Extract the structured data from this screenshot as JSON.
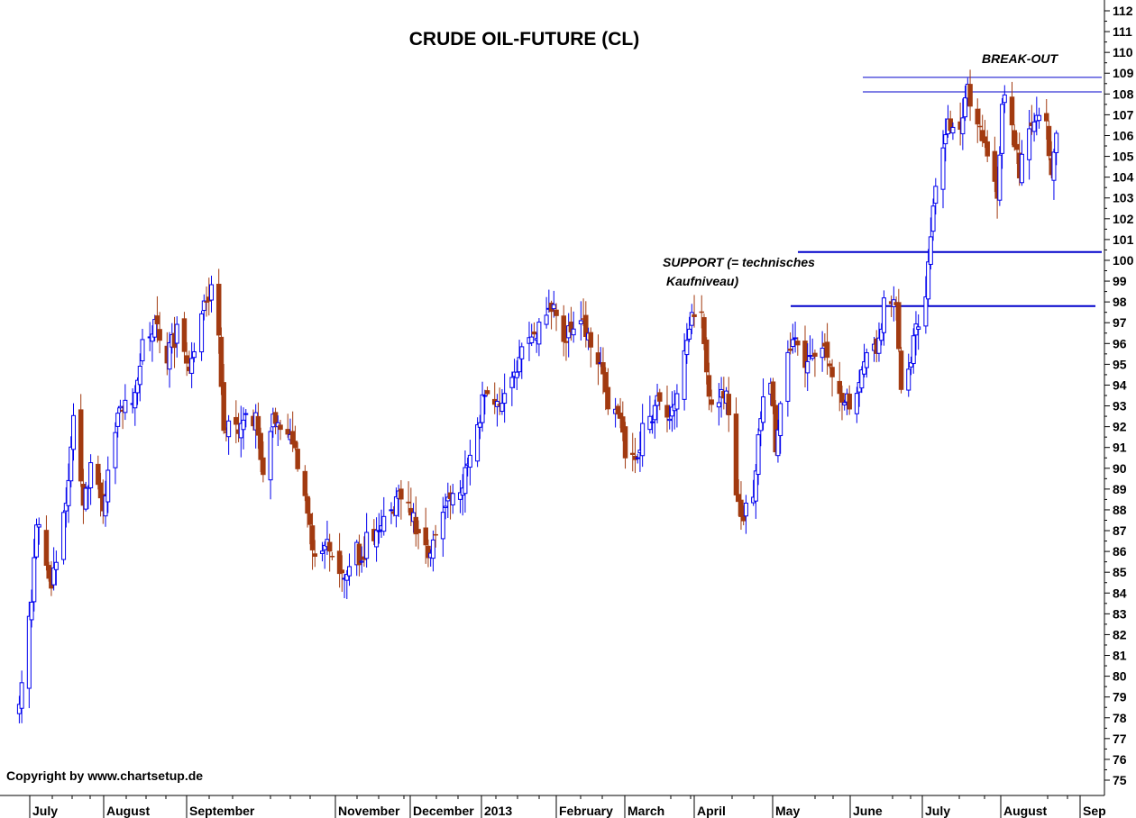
{
  "chart_data": {
    "type": "candlestick",
    "title": "CRUDE OIL-FUTURE  (CL)",
    "copyright": "Copyright by www.chartsetup.de",
    "y_axis": {
      "min": 75,
      "max": 112,
      "step": 1,
      "position": "right"
    },
    "x_labels": [
      "July",
      "August",
      "September",
      "November",
      "December",
      "2013",
      "February",
      "March",
      "April",
      "May",
      "June",
      "July",
      "August",
      "Sep"
    ],
    "annotations": {
      "support_line1": "SUPPORT (= technisches",
      "support_line2": "Kaufniveau)",
      "breakout": "BREAK-OUT"
    },
    "horizontal_levels": [
      108.8,
      108.1,
      100.4,
      97.8
    ],
    "colors": {
      "up": "#0000ee",
      "down": "#a23a10",
      "level_line": "#0000cc",
      "axis": "#000000"
    },
    "anchors": [
      [
        "2012-06-28",
        79
      ],
      [
        "2012-07-03",
        84
      ],
      [
        "2012-07-05",
        87.5
      ],
      [
        "2012-07-11",
        84.5
      ],
      [
        "2012-07-18",
        89
      ],
      [
        "2012-07-20",
        92.5
      ],
      [
        "2012-07-24",
        88.3
      ],
      [
        "2012-07-27",
        90.1
      ],
      [
        "2012-08-01",
        88.3
      ],
      [
        "2012-08-08",
        93
      ],
      [
        "2012-08-13",
        92.8
      ],
      [
        "2012-08-17",
        96.1
      ],
      [
        "2012-08-23",
        96.9
      ],
      [
        "2012-08-27",
        95.5
      ],
      [
        "2012-08-31",
        96.5
      ],
      [
        "2012-09-05",
        95.1
      ],
      [
        "2012-09-14",
        98.9
      ],
      [
        "2012-09-17",
        96.6
      ],
      [
        "2012-09-19",
        91.9
      ],
      [
        "2012-09-24",
        91.9
      ],
      [
        "2012-09-28",
        92.2
      ],
      [
        "2012-10-02",
        92.5
      ],
      [
        "2012-10-05",
        89.9
      ],
      [
        "2012-10-09",
        92.4
      ],
      [
        "2012-10-12",
        91.8
      ],
      [
        "2012-10-15",
        92
      ],
      [
        "2012-10-22",
        88.7
      ],
      [
        "2012-10-25",
        86
      ],
      [
        "2012-10-31",
        86.2
      ],
      [
        "2012-11-07",
        84.5
      ],
      [
        "2012-11-12",
        86.1
      ],
      [
        "2012-11-14",
        85.4
      ],
      [
        "2012-11-16",
        86.6
      ],
      [
        "2012-11-20",
        87
      ],
      [
        "2012-11-26",
        87.7
      ],
      [
        "2012-11-30",
        88.9
      ],
      [
        "2012-12-04",
        87.9
      ],
      [
        "2012-12-10",
        85.9
      ],
      [
        "2012-12-14",
        86.7
      ],
      [
        "2012-12-18",
        88
      ],
      [
        "2012-12-21",
        88.6
      ],
      [
        "2012-12-24",
        88.6
      ],
      [
        "2012-12-28",
        90.8
      ],
      [
        "2013-01-02",
        93.1
      ],
      [
        "2013-01-07",
        93.2
      ],
      [
        "2013-01-11",
        93.6
      ],
      [
        "2013-01-14",
        94
      ],
      [
        "2013-01-18",
        95.6
      ],
      [
        "2013-01-22",
        96.2
      ],
      [
        "2013-01-30",
        97.9
      ],
      [
        "2013-02-04",
        96.2
      ],
      [
        "2013-02-07",
        96.6
      ],
      [
        "2013-02-11",
        97.1
      ],
      [
        "2013-02-15",
        95.9
      ],
      [
        "2013-02-20",
        94.4
      ],
      [
        "2013-02-22",
        93.1
      ],
      [
        "2013-02-26",
        92.6
      ],
      [
        "2013-03-01",
        90.7
      ],
      [
        "2013-03-06",
        90.4
      ],
      [
        "2013-03-08",
        91.9
      ],
      [
        "2013-03-12",
        92.5
      ],
      [
        "2013-03-15",
        93.5
      ],
      [
        "2013-03-19",
        92.4
      ],
      [
        "2013-03-22",
        93.7
      ],
      [
        "2013-03-26",
        96
      ],
      [
        "2013-03-28",
        97.2
      ],
      [
        "2013-04-01",
        97.1
      ],
      [
        "2013-04-04",
        93.3
      ],
      [
        "2013-04-08",
        93.2
      ],
      [
        "2013-04-11",
        93.6
      ],
      [
        "2013-04-15",
        88.7
      ],
      [
        "2013-04-18",
        87.7
      ],
      [
        "2013-04-22",
        88.8
      ],
      [
        "2013-04-24",
        91.4
      ],
      [
        "2013-04-26",
        93
      ],
      [
        "2013-04-29",
        94.5
      ],
      [
        "2013-05-01",
        91
      ],
      [
        "2013-05-06",
        95.6
      ],
      [
        "2013-05-09",
        96.4
      ],
      [
        "2013-05-13",
        94.8
      ],
      [
        "2013-05-16",
        95.1
      ],
      [
        "2013-05-21",
        96.2
      ],
      [
        "2013-05-24",
        94.2
      ],
      [
        "2013-05-29",
        93.1
      ],
      [
        "2013-06-03",
        93.5
      ],
      [
        "2013-06-07",
        96
      ],
      [
        "2013-06-11",
        95.6
      ],
      [
        "2013-06-14",
        97.8
      ],
      [
        "2013-06-19",
        98.2
      ],
      [
        "2013-06-21",
        93.7
      ],
      [
        "2013-06-25",
        95.3
      ],
      [
        "2013-06-27",
        97
      ],
      [
        "2013-07-01",
        97.9
      ],
      [
        "2013-07-03",
        101.2
      ],
      [
        "2013-07-05",
        103.2
      ],
      [
        "2013-07-10",
        106.5
      ],
      [
        "2013-07-12",
        106.2
      ],
      [
        "2013-07-15",
        106
      ],
      [
        "2013-07-18",
        108.1
      ],
      [
        "2013-07-22",
        106.9
      ],
      [
        "2013-07-25",
        105.3
      ],
      [
        "2013-07-30",
        103.1
      ],
      [
        "2013-08-01",
        107.9
      ],
      [
        "2013-08-05",
        106.6
      ],
      [
        "2013-08-08",
        104.2
      ],
      [
        "2013-08-12",
        106.6
      ],
      [
        "2013-08-15",
        107.3
      ],
      [
        "2013-08-19",
        106.4
      ],
      [
        "2013-08-21",
        104.4
      ],
      [
        "2013-08-23",
        106.4
      ]
    ]
  }
}
